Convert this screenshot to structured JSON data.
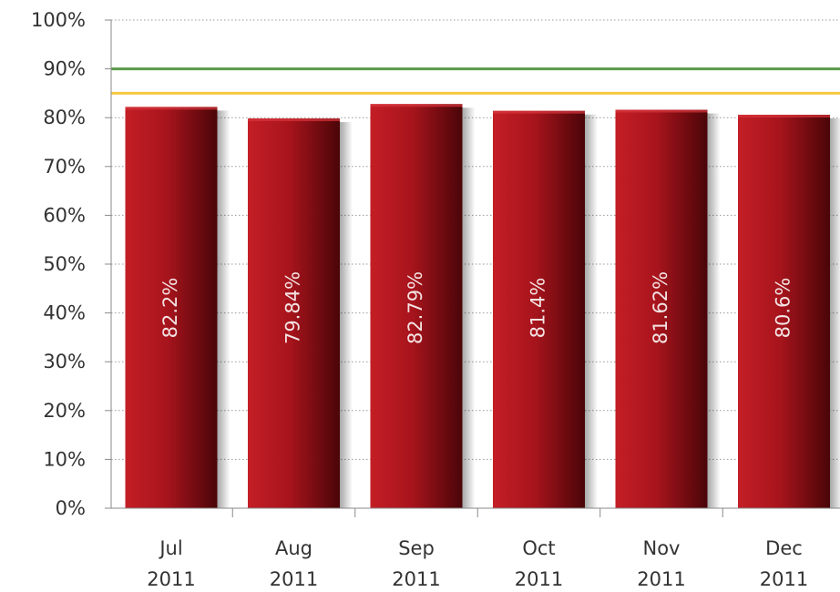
{
  "chart_data": {
    "type": "bar",
    "title": "",
    "xlabel": "",
    "ylabel": "",
    "categories": [
      [
        "Jul",
        "2011"
      ],
      [
        "Aug",
        "2011"
      ],
      [
        "Sep",
        "2011"
      ],
      [
        "Oct",
        "2011"
      ],
      [
        "Nov",
        "2011"
      ],
      [
        "Dec",
        "2011"
      ]
    ],
    "values": [
      82.2,
      79.84,
      82.79,
      81.4,
      81.62,
      80.6
    ],
    "data_labels": [
      "82.2%",
      "79.84%",
      "82.79%",
      "81.4%",
      "81.62%",
      "80.6%"
    ],
    "ylim": [
      0,
      100
    ],
    "yticks": [
      "0%",
      "10%",
      "20%",
      "30%",
      "40%",
      "50%",
      "60%",
      "70%",
      "80%",
      "90%",
      "100%"
    ],
    "grid": true,
    "legend": "none",
    "reference_lines": [
      {
        "value": 90,
        "color": "#5a9a4a"
      },
      {
        "value": 85,
        "color": "#f5c842"
      }
    ],
    "bar_color": "#a3151c"
  }
}
